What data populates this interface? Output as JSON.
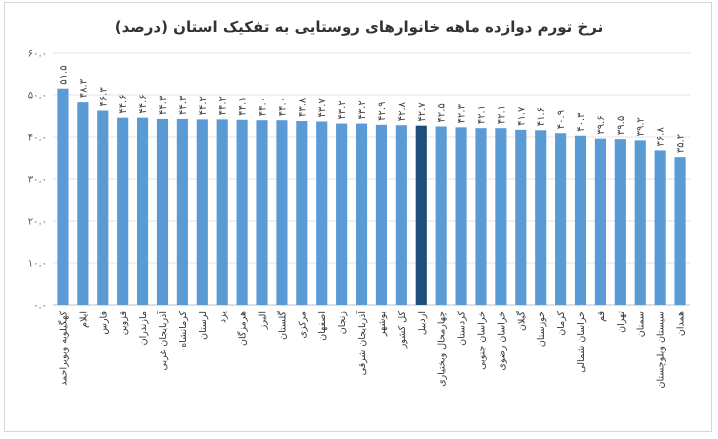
{
  "chart_data": {
    "type": "bar",
    "title": "نرخ تورم دوازده ماهه خانوارهای روستایی به تفکیک استان (درصد)",
    "xlabel": "",
    "ylabel": "",
    "ylim": [
      0,
      60
    ],
    "yticks": [
      "۰.۰",
      "۱۰.۰",
      "۲۰.۰",
      "۳۰.۰",
      "۴۰.۰",
      "۵۰.۰",
      "۶۰.۰"
    ],
    "grid": true,
    "highlight_index": 18,
    "colors": {
      "bar": "#5b9bd5",
      "highlight": "#1f4e79",
      "grid": "#e3e3e3"
    },
    "categories": [
      "کهگیلویه وبویراحمد",
      "ایلام",
      "فارس",
      "قزوین",
      "مازندران",
      "آذربایجان غربی",
      "کرمانشاه",
      "لرستان",
      "یزد",
      "هرمزگان",
      "البرز",
      "گلستان",
      "مرکزی",
      "اصفهان",
      "زنجان",
      "آذربایجان شرقی",
      "بوشهر",
      "کل کشور",
      "اردبیل",
      "چهارمحال وبختیاری",
      "کردستان",
      "خراسان جنوبی",
      "خراسان رضوی",
      "گیلان",
      "خوزستان",
      "کرمان",
      "خراسان شمالی",
      "قم",
      "تهران",
      "سمنان",
      "سیستان وبلوچستان",
      "همدان"
    ],
    "values": [
      51.5,
      48.3,
      46.3,
      44.6,
      44.6,
      44.3,
      44.3,
      44.2,
      44.2,
      44.1,
      44.0,
      44.0,
      43.8,
      43.7,
      43.2,
      43.2,
      42.9,
      42.8,
      42.7,
      42.5,
      42.3,
      42.1,
      42.1,
      41.7,
      41.6,
      40.9,
      40.3,
      39.6,
      39.5,
      39.2,
      36.8,
      35.2
    ],
    "value_labels": [
      "۵۱.۵",
      "۴۸.۳",
      "۴۶.۳",
      "۴۴.۶",
      "۴۴.۶",
      "۴۴.۳",
      "۴۴.۳",
      "۴۴.۲",
      "۴۴.۲",
      "۴۴.۱",
      "۴۴.۰",
      "۴۴.۰",
      "۴۳.۸",
      "۴۳.۷",
      "۴۳.۲",
      "۴۳.۲",
      "۴۲.۹",
      "۴۲.۸",
      "۴۲.۷",
      "۴۲.۵",
      "۴۲.۳",
      "۴۲.۱",
      "۴۲.۱",
      "۴۱.۷",
      "۴۱.۶",
      "۴۰.۹",
      "۴۰.۳",
      "۳۹.۶",
      "۳۹.۵",
      "۳۹.۲",
      "۳۶.۸",
      "۳۵.۲"
    ]
  }
}
